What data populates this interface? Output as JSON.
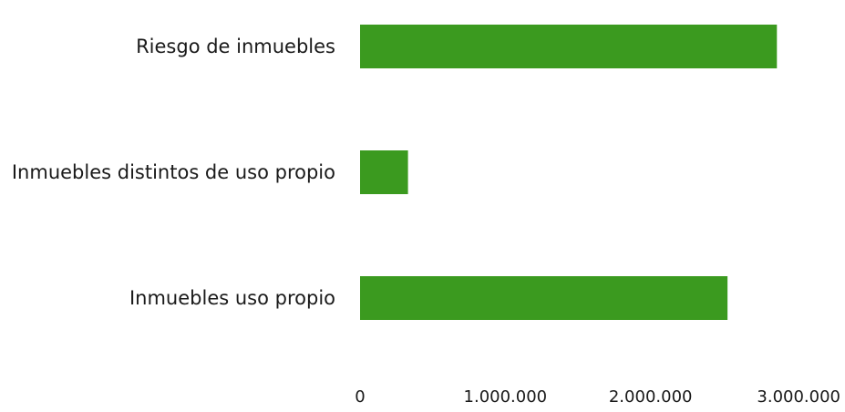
{
  "chart_data": {
    "type": "bar",
    "orientation": "horizontal",
    "categories": [
      "Riesgo de inmuebles",
      "Inmuebles distintos de uso propio",
      "Inmuebles uso propio"
    ],
    "values": [
      2870000,
      330000,
      2530000
    ],
    "xlim": [
      0,
      3000000
    ],
    "xticks": [
      0,
      1000000,
      2000000,
      3000000
    ],
    "xtick_labels": [
      "0",
      "1.000.000",
      "2.000.000",
      "3.000.000"
    ],
    "bar_color": "#3b9a1f",
    "grid": false,
    "legend": "none"
  }
}
